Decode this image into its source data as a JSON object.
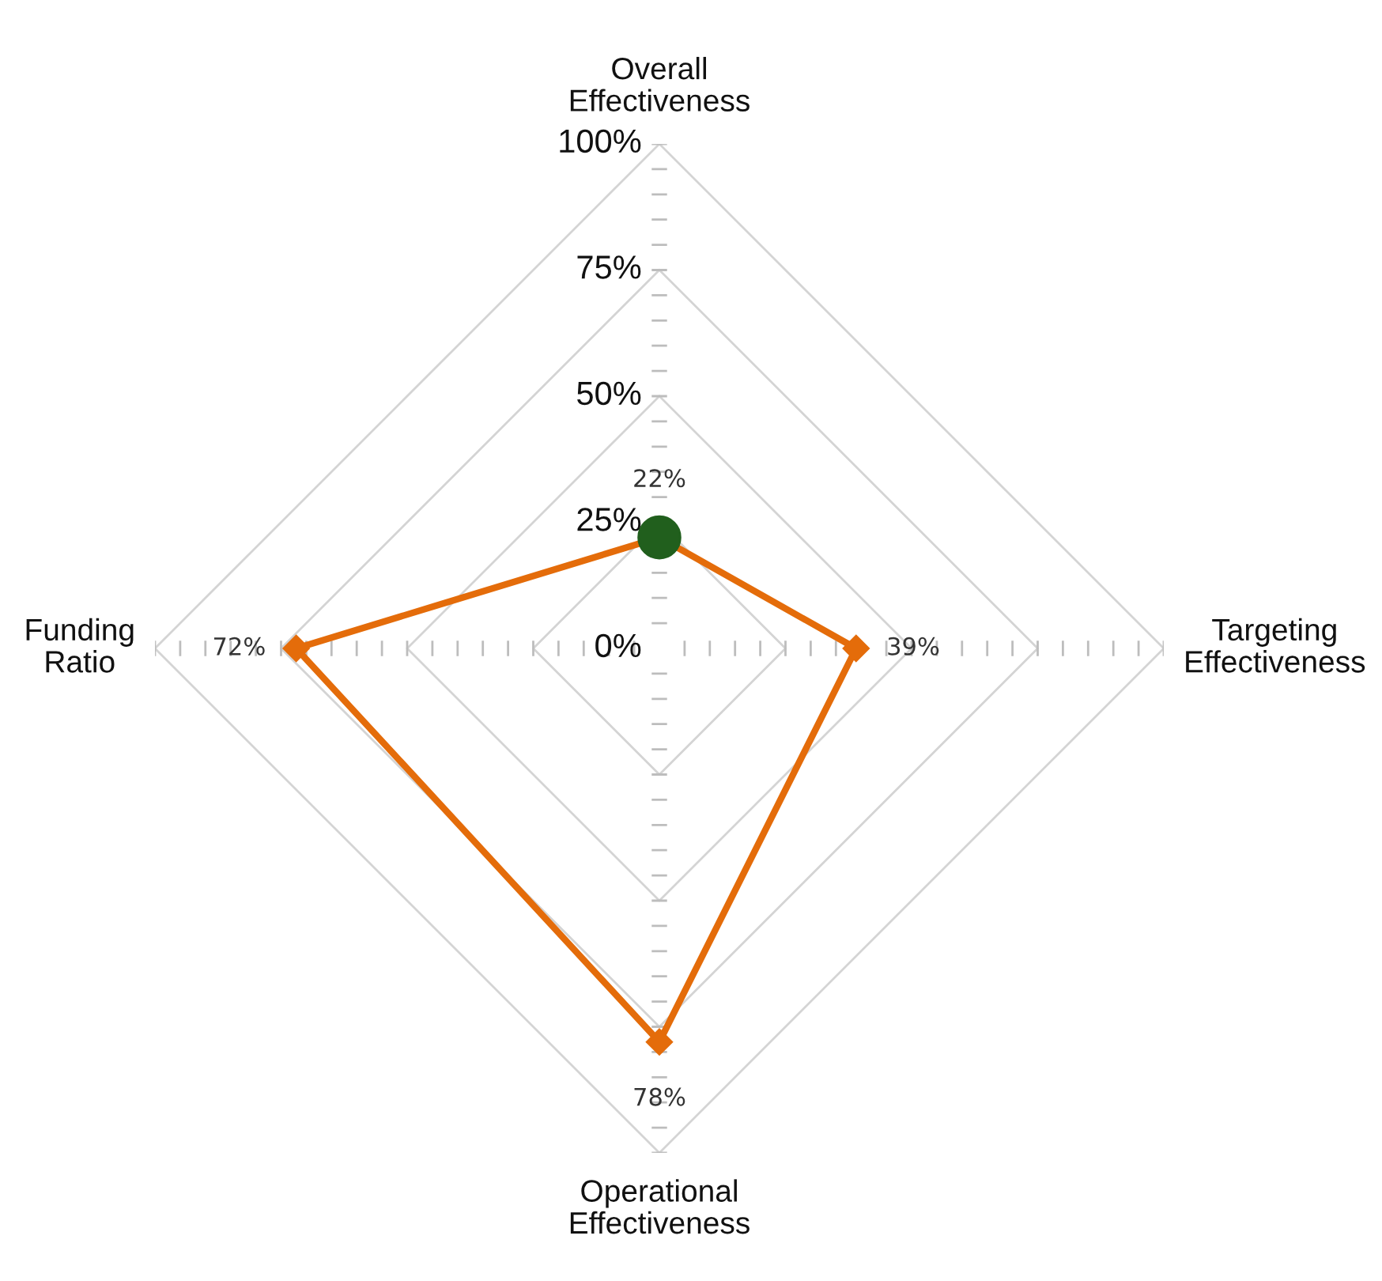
{
  "chart_data": {
    "type": "radar",
    "categories": [
      "Overall Effectiveness",
      "Targeting Effectiveness",
      "Operational Effectiveness",
      "Funding Ratio"
    ],
    "series": [
      {
        "color": "#e46c0a",
        "colors": [
          "#215f1d",
          "#e46c0a",
          "#e46c0a",
          "#e46c0a"
        ],
        "values": [
          22,
          39,
          78,
          72
        ],
        "value_labels": [
          "22%",
          "39%",
          "78%",
          "72%"
        ]
      }
    ],
    "marker": "diamond",
    "line_style": "solid",
    "ylim": [
      0,
      100
    ],
    "yticks": [
      {
        "value": 0,
        "label": "0%"
      },
      {
        "value": 25,
        "label": "25%"
      },
      {
        "value": 50,
        "label": "50%"
      },
      {
        "value": 75,
        "label": "75%"
      },
      {
        "value": 100,
        "label": "100%"
      }
    ],
    "grid": true
  }
}
